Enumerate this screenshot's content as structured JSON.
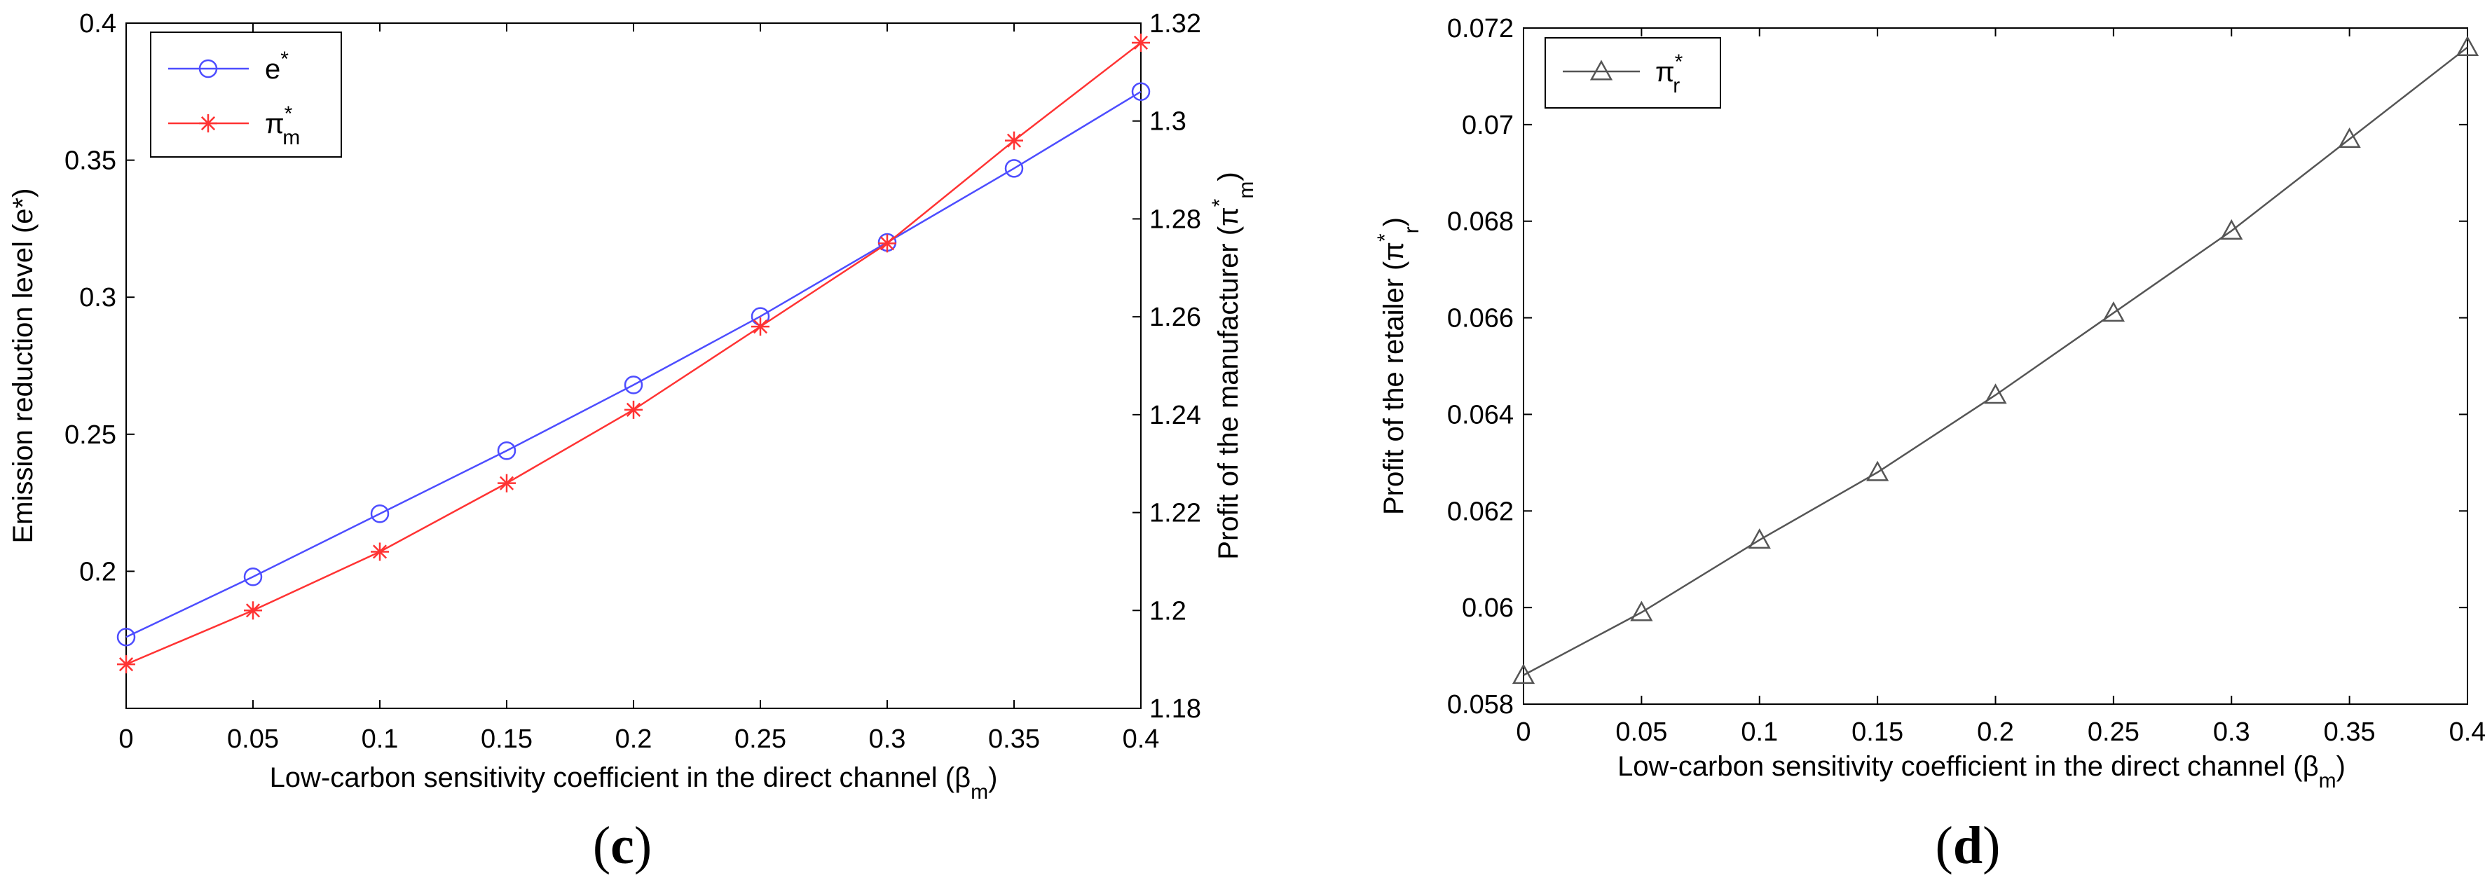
{
  "chart_data": [
    {
      "panel": "c",
      "caption": {
        "open": "(",
        "letter": "c",
        "close": ")"
      },
      "type": "line",
      "x": [
        0,
        0.05,
        0.1,
        0.15,
        0.2,
        0.25,
        0.3,
        0.35,
        0.4
      ],
      "x_tick_labels": [
        "0",
        "0.05",
        "0.1",
        "0.15",
        "0.2",
        "0.25",
        "0.3",
        "0.35",
        "0.4"
      ],
      "xlabel": "Low-carbon sensitivity coefficient in the direct channel (β",
      "xlabel_sub": "m",
      "xlabel_close": ")",
      "xlim": [
        0,
        0.4
      ],
      "ylabel_left": "Emission reduction level (e*)",
      "ylim_left": [
        0.15,
        0.4
      ],
      "y_ticks_left": [
        0.2,
        0.25,
        0.3,
        0.35,
        0.4
      ],
      "y_tick_labels_left": [
        "0.2",
        "0.25",
        "0.3",
        "0.35",
        "0.4"
      ],
      "ylabel_right": "Profit of the manufacturer (π",
      "ylabel_right_sup": "*",
      "ylabel_right_sub": "m",
      "ylabel_right_close": ")",
      "ylim_right": [
        1.18,
        1.32
      ],
      "y_ticks_right": [
        1.18,
        1.2,
        1.22,
        1.24,
        1.26,
        1.28,
        1.3,
        1.32
      ],
      "y_tick_labels_right": [
        "1.18",
        "1.2",
        "1.22",
        "1.24",
        "1.26",
        "1.28",
        "1.3",
        "1.32"
      ],
      "legend_position": "top-left",
      "series": [
        {
          "name": "e*",
          "legend_main": "e",
          "legend_sup": "*",
          "legend_sub": "",
          "axis": "left",
          "marker": "circle",
          "color": "#4d4dff",
          "values": [
            0.176,
            0.198,
            0.221,
            0.244,
            0.268,
            0.293,
            0.32,
            0.347,
            0.375
          ]
        },
        {
          "name": "π*m",
          "legend_main": "π",
          "legend_sup": "*",
          "legend_sub": "m",
          "axis": "right",
          "marker": "star",
          "color": "#ff3333",
          "values": [
            1.189,
            1.2,
            1.212,
            1.226,
            1.241,
            1.258,
            1.275,
            1.296,
            1.316
          ]
        }
      ]
    },
    {
      "panel": "d",
      "caption": {
        "open": "(",
        "letter": "d",
        "close": ")"
      },
      "type": "line",
      "x": [
        0,
        0.05,
        0.1,
        0.15,
        0.2,
        0.25,
        0.3,
        0.35,
        0.4
      ],
      "x_tick_labels": [
        "0",
        "0.05",
        "0.1",
        "0.15",
        "0.2",
        "0.25",
        "0.3",
        "0.35",
        "0.4"
      ],
      "xlabel": "Low-carbon sensitivity coefficient in the direct channel (β",
      "xlabel_sub": "m",
      "xlabel_close": ")",
      "xlim": [
        0,
        0.4
      ],
      "ylabel": "Profit of the retailer (π",
      "ylabel_sup": "*",
      "ylabel_sub": "r",
      "ylabel_close": ")",
      "ylim": [
        0.058,
        0.072
      ],
      "y_ticks": [
        0.058,
        0.06,
        0.062,
        0.064,
        0.066,
        0.068,
        0.07,
        0.072
      ],
      "y_tick_labels": [
        "0.058",
        "0.06",
        "0.062",
        "0.064",
        "0.066",
        "0.068",
        "0.07",
        "0.072"
      ],
      "legend_position": "top-left",
      "series": [
        {
          "name": "π*r",
          "legend_main": "π",
          "legend_sup": "*",
          "legend_sub": "r",
          "marker": "triangle",
          "color": "#555555",
          "values": [
            0.0586,
            0.0599,
            0.0614,
            0.0628,
            0.0644,
            0.0661,
            0.0678,
            0.0697,
            0.0716
          ]
        }
      ]
    }
  ]
}
